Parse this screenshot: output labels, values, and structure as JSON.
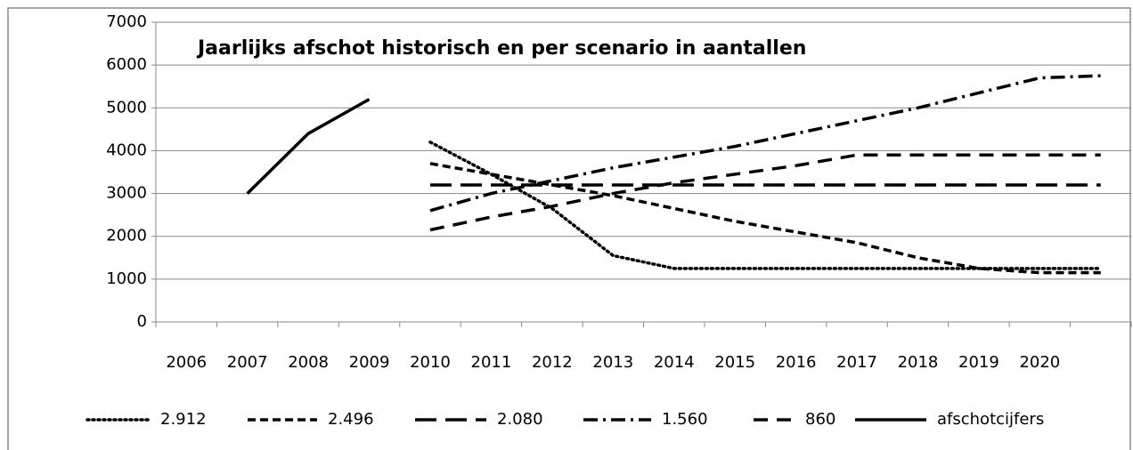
{
  "chart_data": {
    "type": "line",
    "title": "Jaarlijks afschot historisch en per scenario in aantallen",
    "categories": [
      "2006",
      "2007",
      "2008",
      "2009",
      "2010",
      "2011",
      "2012",
      "2013",
      "2014",
      "2015",
      "2016",
      "2017",
      "2018",
      "2019",
      "2020",
      null
    ],
    "series": [
      {
        "name": "2.912",
        "color": "#000000",
        "dash": "dotted",
        "values": [
          null,
          null,
          null,
          null,
          4200,
          3450,
          2650,
          1550,
          1250,
          1250,
          1250,
          1250,
          1250,
          1250,
          1250,
          1250
        ]
      },
      {
        "name": "2.496",
        "color": "#000000",
        "dash": "short",
        "values": [
          null,
          null,
          null,
          null,
          3700,
          3450,
          3200,
          2950,
          2650,
          2350,
          2100,
          1850,
          1500,
          1250,
          1150,
          1150
        ]
      },
      {
        "name": "2.080",
        "color": "#000000",
        "dash": "long",
        "values": [
          null,
          null,
          null,
          null,
          3200,
          3200,
          3200,
          3200,
          3200,
          3200,
          3200,
          3200,
          3200,
          3200,
          3200,
          3200
        ]
      },
      {
        "name": "1.560",
        "color": "#000000",
        "dash": "dashdot",
        "values": [
          null,
          null,
          null,
          null,
          2600,
          3000,
          3300,
          3600,
          3850,
          4100,
          4400,
          4700,
          5000,
          5350,
          5700,
          5750
        ]
      },
      {
        "name": "860",
        "color": "#000000",
        "dash": "medium",
        "values": [
          null,
          null,
          null,
          null,
          2150,
          2450,
          2700,
          3000,
          3250,
          3450,
          3650,
          3900,
          3900,
          3900,
          3900,
          3900
        ]
      },
      {
        "name": "afschotcijfers",
        "color": "#000000",
        "dash": "solid",
        "values": [
          null,
          3000,
          4400,
          5200,
          null,
          null,
          null,
          null,
          null,
          null,
          null,
          null,
          null,
          null,
          null,
          null
        ]
      }
    ],
    "ylim": [
      0,
      7000
    ],
    "yticks": [
      0,
      1000,
      2000,
      3000,
      4000,
      5000,
      6000,
      7000
    ],
    "grid": true
  }
}
